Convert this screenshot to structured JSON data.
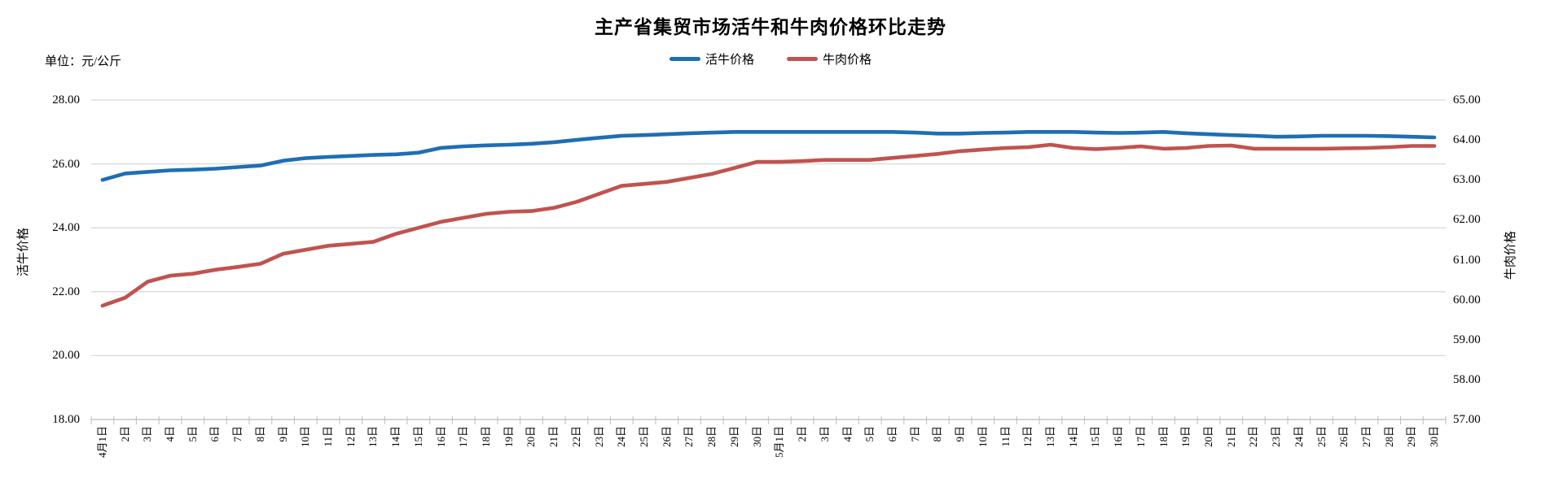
{
  "title": "主产省集贸市场活牛和牛肉价格环比走势",
  "unit_label": "单位：元/公斤",
  "legend": {
    "items": [
      {
        "label": "活牛价格",
        "color": "#1f6eb4"
      },
      {
        "label": "牛肉价格",
        "color": "#c0534e"
      }
    ]
  },
  "left_axis": {
    "title": "活牛价格",
    "tick_labels": [
      "28.00",
      "26.00",
      "24.00",
      "22.00",
      "20.00",
      "18.00"
    ]
  },
  "right_axis": {
    "title": "牛肉价格",
    "tick_labels": [
      "65.00",
      "64.00",
      "63.00",
      "62.00",
      "61.00",
      "60.00",
      "59.00",
      "58.00",
      "57.00"
    ]
  },
  "colors": {
    "gridline": "#d9d9d9",
    "axis_line": "#c6c6c6",
    "live_cattle": "#1f6eb4",
    "beef": "#c0534e"
  },
  "chart_data": {
    "type": "line",
    "title": "主产省集贸市场活牛和牛肉价格环比走势",
    "unit": "元/公斤",
    "grid": true,
    "legend_position": "top",
    "categories": [
      "4月1日",
      "2日",
      "3日",
      "4日",
      "5日",
      "6日",
      "7日",
      "8日",
      "9日",
      "10日",
      "11日",
      "12日",
      "13日",
      "14日",
      "15日",
      "16日",
      "17日",
      "18日",
      "19日",
      "20日",
      "21日",
      "22日",
      "23日",
      "24日",
      "25日",
      "26日",
      "27日",
      "28日",
      "29日",
      "30日",
      "5月1日",
      "2日",
      "3日",
      "4日",
      "5日",
      "6日",
      "7日",
      "8日",
      "9日",
      "10日",
      "11日",
      "12日",
      "13日",
      "14日",
      "15日",
      "16日",
      "17日",
      "18日",
      "19日",
      "20日",
      "21日",
      "22日",
      "23日",
      "24日",
      "25日",
      "26日",
      "27日",
      "28日",
      "29日",
      "30日"
    ],
    "left_axis": {
      "label": "活牛价格",
      "range": [
        18,
        28
      ],
      "tick_step": 2
    },
    "right_axis": {
      "label": "牛肉价格",
      "range": [
        57,
        65
      ],
      "tick_step": 1
    },
    "series": [
      {
        "name": "活牛价格",
        "axis": "left",
        "color": "#1f6eb4",
        "values": [
          25.5,
          25.7,
          25.75,
          25.8,
          25.82,
          25.85,
          25.9,
          25.95,
          26.1,
          26.18,
          26.22,
          26.25,
          26.28,
          26.3,
          26.35,
          26.5,
          26.55,
          26.58,
          26.6,
          26.63,
          26.68,
          26.75,
          26.82,
          26.88,
          26.9,
          26.93,
          26.96,
          26.98,
          27.0,
          27.0,
          27.0,
          27.0,
          27.0,
          27.0,
          27.0,
          27.0,
          26.98,
          26.95,
          26.95,
          26.97,
          26.98,
          27.0,
          27.0,
          27.0,
          26.98,
          26.97,
          26.98,
          27.0,
          26.96,
          26.93,
          26.9,
          26.88,
          26.85,
          26.86,
          26.88,
          26.88,
          26.88,
          26.87,
          26.85,
          26.83
        ]
      },
      {
        "name": "牛肉价格",
        "axis": "right",
        "color": "#c0534e",
        "values": [
          59.85,
          60.05,
          60.45,
          60.6,
          60.65,
          60.75,
          60.82,
          60.9,
          61.15,
          61.25,
          61.35,
          61.4,
          61.45,
          61.65,
          61.8,
          61.95,
          62.05,
          62.15,
          62.2,
          62.22,
          62.3,
          62.45,
          62.65,
          62.85,
          62.9,
          62.95,
          63.05,
          63.15,
          63.3,
          63.45,
          63.45,
          63.47,
          63.5,
          63.5,
          63.5,
          63.55,
          63.6,
          63.65,
          63.72,
          63.76,
          63.8,
          63.82,
          63.88,
          63.8,
          63.77,
          63.8,
          63.84,
          63.78,
          63.8,
          63.85,
          63.86,
          63.78,
          63.78,
          63.78,
          63.78,
          63.79,
          63.8,
          63.82,
          63.85,
          63.85
        ]
      }
    ]
  }
}
